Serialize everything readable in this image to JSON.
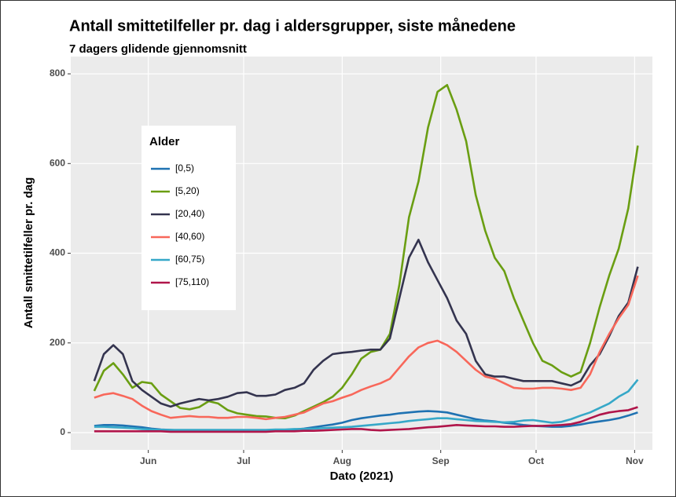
{
  "chart_data": {
    "type": "line",
    "title": "Antall smittetilfeller pr. dag i aldersgrupper, siste månedene",
    "subtitle": "7 dagers glidende gjennomsnitt",
    "x_label": "Dato (2021)",
    "y_label": "Antall smittetilfeller pr. dag",
    "legend_title": "Alder",
    "grid": true,
    "xlim": [
      127.6,
      310.6
    ],
    "xticks": [
      {
        "value": 152,
        "label": "Jun"
      },
      {
        "value": 182,
        "label": "Jul"
      },
      {
        "value": 213,
        "label": "Aug"
      },
      {
        "value": 244,
        "label": "Sep"
      },
      {
        "value": 274,
        "label": "Oct"
      },
      {
        "value": 305,
        "label": "Nov"
      }
    ],
    "ylim": [
      -38.5,
      838.6
    ],
    "yticks": [
      0,
      200,
      400,
      600,
      800
    ],
    "x": [
      135,
      138,
      141,
      144,
      147,
      150,
      153,
      156,
      159,
      162,
      165,
      168,
      171,
      174,
      177,
      180,
      183,
      186,
      189,
      192,
      195,
      198,
      201,
      204,
      207,
      210,
      213,
      216,
      219,
      222,
      225,
      228,
      231,
      234,
      237,
      240,
      243,
      246,
      249,
      252,
      255,
      258,
      261,
      264,
      267,
      270,
      273,
      276,
      279,
      282,
      285,
      288,
      291,
      294,
      297,
      300,
      303,
      306
    ],
    "series": [
      {
        "name": "[0,5)",
        "color": "#1f72b2",
        "values": [
          15,
          17,
          17,
          16,
          14,
          12,
          9,
          7,
          6,
          5,
          5,
          5,
          5,
          5,
          5,
          5,
          5,
          5,
          5,
          6,
          6,
          7,
          9,
          12,
          15,
          18,
          22,
          28,
          32,
          35,
          38,
          40,
          43,
          45,
          47,
          48,
          47,
          45,
          40,
          35,
          30,
          27,
          25,
          22,
          20,
          17,
          15,
          14,
          13,
          13,
          15,
          18,
          22,
          25,
          28,
          32,
          38,
          45
        ]
      },
      {
        "name": "[5,20)",
        "color": "#6a9e12",
        "values": [
          93,
          138,
          155,
          130,
          100,
          113,
          110,
          85,
          70,
          55,
          52,
          57,
          70,
          65,
          50,
          43,
          40,
          37,
          36,
          33,
          32,
          38,
          48,
          58,
          68,
          80,
          100,
          130,
          165,
          180,
          185,
          220,
          330,
          480,
          560,
          680,
          760,
          775,
          720,
          650,
          530,
          450,
          390,
          360,
          300,
          250,
          200,
          160,
          150,
          135,
          125,
          135,
          200,
          280,
          350,
          410,
          500,
          640
        ]
      },
      {
        "name": "[20,40)",
        "color": "#34344f",
        "values": [
          115,
          175,
          195,
          175,
          115,
          95,
          80,
          65,
          58,
          65,
          70,
          75,
          72,
          75,
          80,
          88,
          90,
          82,
          82,
          85,
          95,
          100,
          110,
          140,
          160,
          175,
          178,
          180,
          183,
          185,
          185,
          210,
          300,
          390,
          430,
          380,
          340,
          300,
          250,
          220,
          160,
          130,
          125,
          125,
          120,
          115,
          115,
          115,
          115,
          110,
          105,
          115,
          150,
          175,
          215,
          260,
          290,
          370
        ]
      },
      {
        "name": "[40,60)",
        "color": "#f8675a",
        "values": [
          78,
          85,
          88,
          82,
          75,
          60,
          48,
          40,
          33,
          35,
          37,
          35,
          35,
          33,
          33,
          35,
          35,
          33,
          30,
          33,
          35,
          40,
          45,
          55,
          65,
          70,
          78,
          85,
          95,
          103,
          110,
          120,
          145,
          170,
          190,
          200,
          205,
          195,
          180,
          160,
          140,
          125,
          120,
          110,
          100,
          98,
          98,
          100,
          100,
          98,
          95,
          100,
          130,
          180,
          220,
          255,
          285,
          350
        ]
      },
      {
        "name": "[60,75)",
        "color": "#36a8c8",
        "values": [
          13,
          13,
          12,
          11,
          10,
          8,
          7,
          6,
          6,
          6,
          6,
          6,
          6,
          6,
          6,
          6,
          6,
          6,
          6,
          7,
          7,
          8,
          8,
          9,
          10,
          11,
          12,
          13,
          15,
          17,
          19,
          21,
          23,
          26,
          28,
          30,
          32,
          32,
          30,
          28,
          26,
          25,
          24,
          23,
          24,
          27,
          28,
          25,
          22,
          24,
          30,
          38,
          45,
          55,
          65,
          80,
          92,
          118
        ]
      },
      {
        "name": "[75,110)",
        "color": "#b0154a",
        "values": [
          3,
          3,
          3,
          3,
          3,
          3,
          3,
          3,
          2,
          2,
          2,
          2,
          2,
          2,
          2,
          2,
          2,
          2,
          2,
          3,
          3,
          3,
          4,
          4,
          5,
          6,
          7,
          8,
          8,
          6,
          5,
          6,
          7,
          8,
          10,
          12,
          13,
          15,
          17,
          16,
          15,
          14,
          14,
          13,
          13,
          14,
          15,
          15,
          16,
          17,
          19,
          24,
          32,
          40,
          45,
          48,
          50,
          57
        ]
      }
    ]
  }
}
